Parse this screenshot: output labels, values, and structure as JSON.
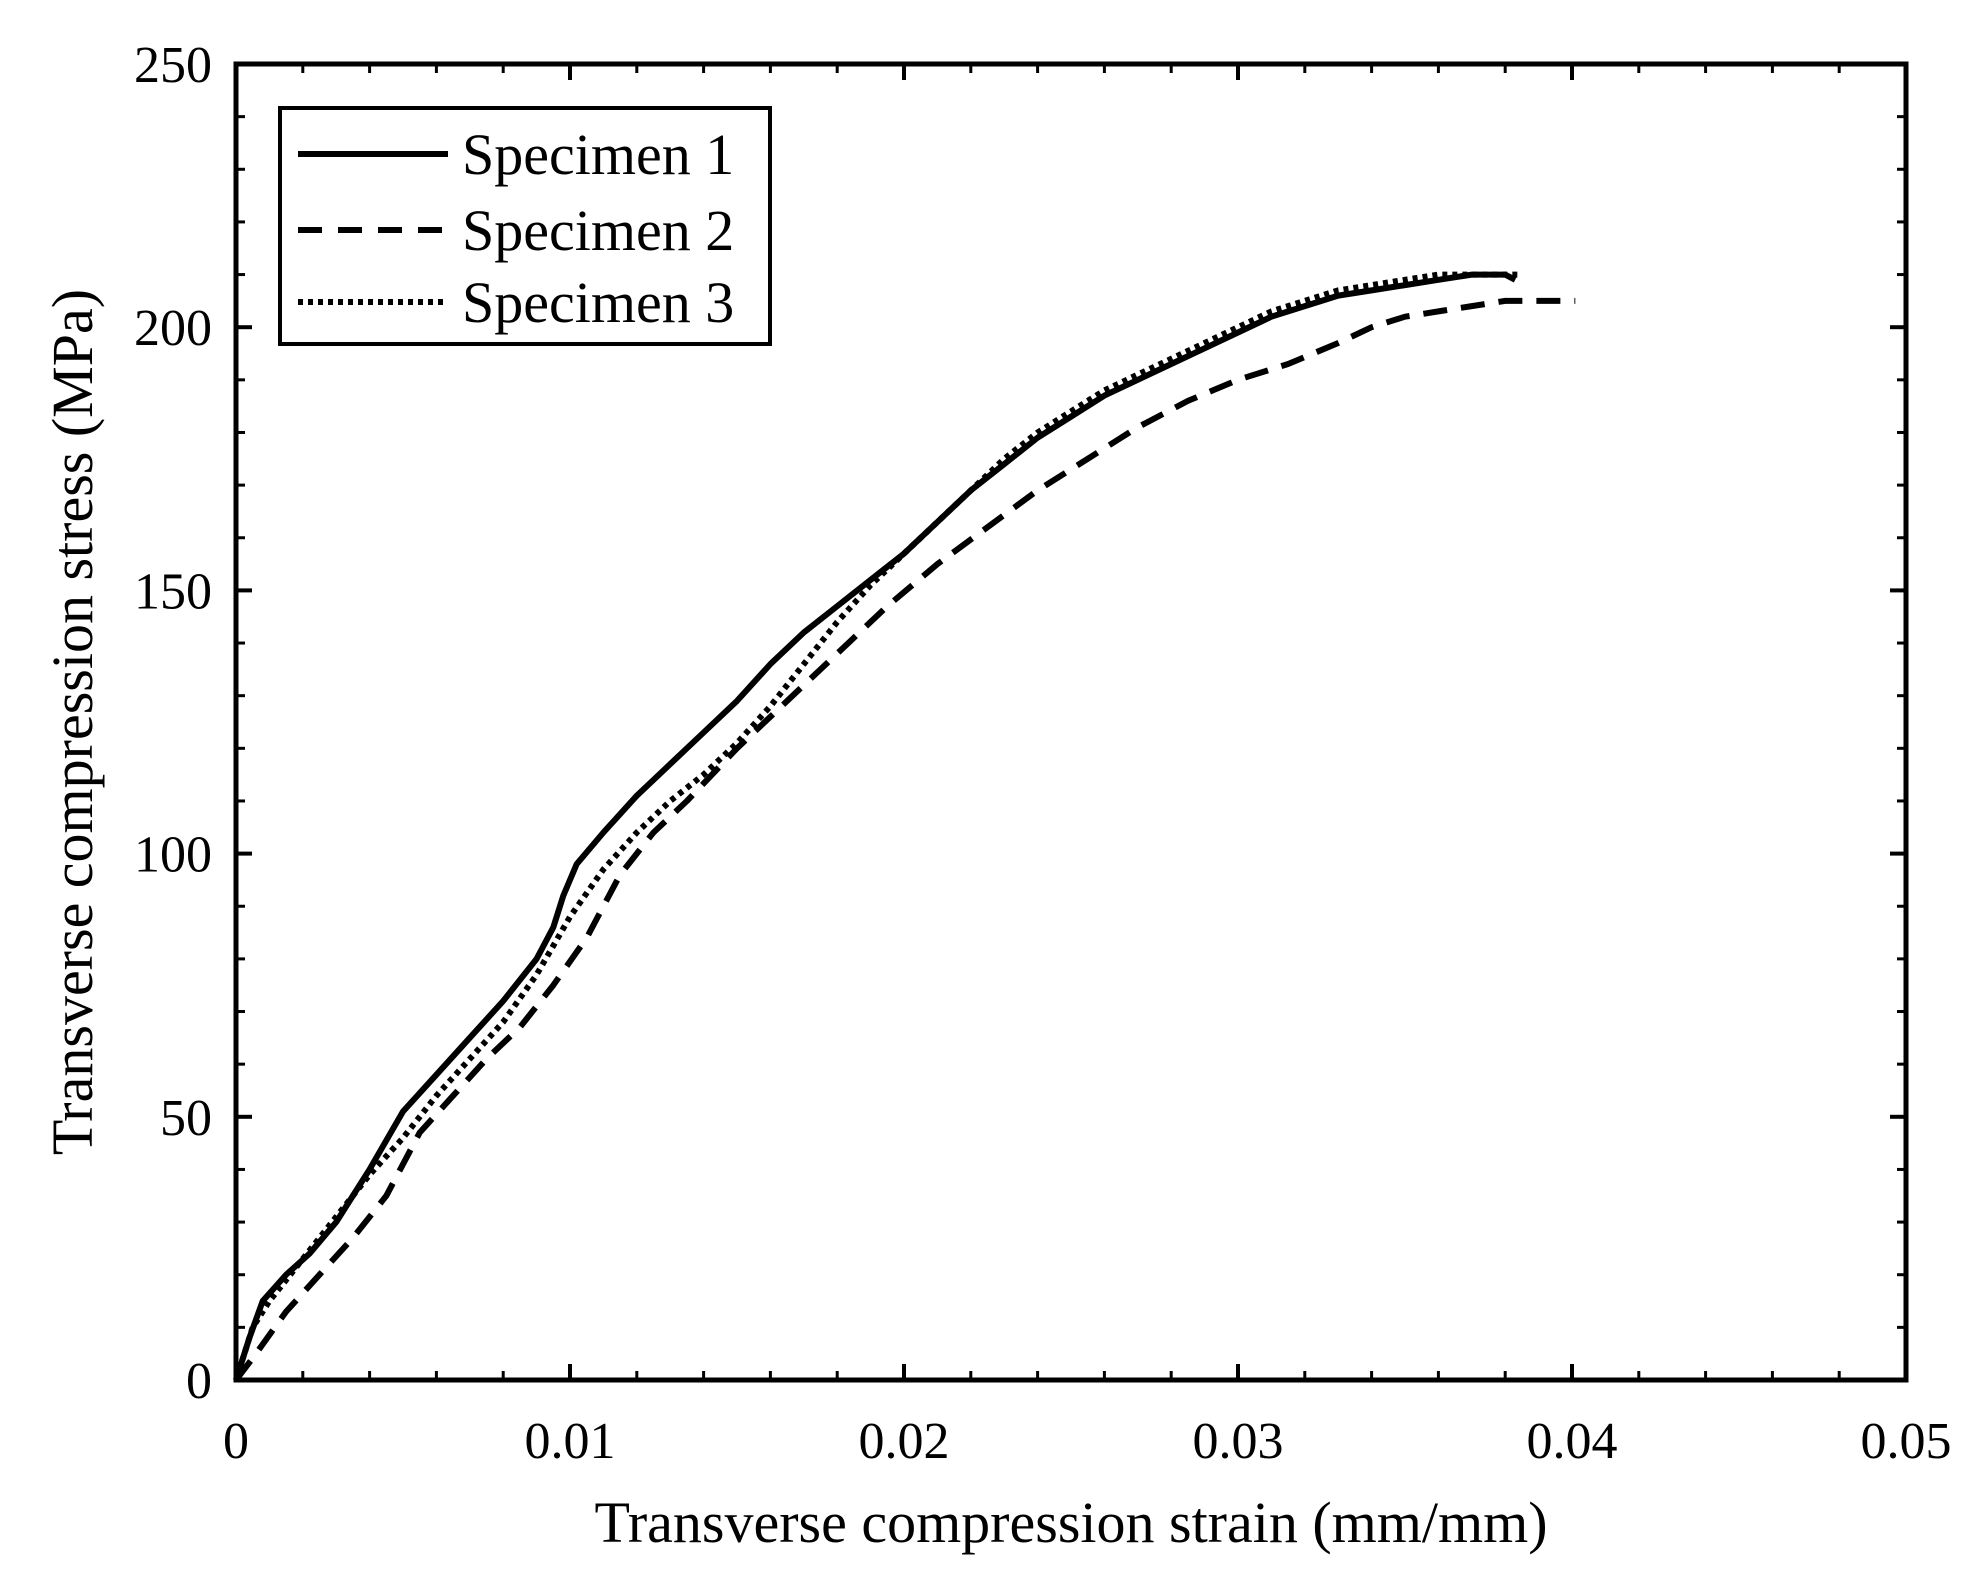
{
  "chart_data": {
    "type": "line",
    "title": "",
    "xlabel": "Transverse compression strain (mm/mm)",
    "ylabel": "Transverse compression stress (MPa)",
    "xlim": [
      0,
      0.05
    ],
    "ylim": [
      0,
      250
    ],
    "x_ticks": [
      0,
      0.01,
      0.02,
      0.03,
      0.04,
      0.05
    ],
    "x_tick_labels": [
      "0",
      "0.01",
      "0.02",
      "0.03",
      "0.04",
      "0.05"
    ],
    "y_ticks": [
      0,
      50,
      100,
      150,
      200,
      250
    ],
    "y_tick_labels": [
      "0",
      "50",
      "100",
      "150",
      "200",
      "250"
    ],
    "grid": false,
    "legend_position": "top-left",
    "colors": {
      "line": "#000000",
      "background": "#ffffff"
    },
    "series": [
      {
        "name": "Specimen 1",
        "style": "solid",
        "points": [
          [
            0,
            0
          ],
          [
            0.0004,
            8
          ],
          [
            0.0008,
            15
          ],
          [
            0.0015,
            20
          ],
          [
            0.0022,
            24
          ],
          [
            0.003,
            30
          ],
          [
            0.004,
            40
          ],
          [
            0.005,
            51
          ],
          [
            0.006,
            58
          ],
          [
            0.007,
            65
          ],
          [
            0.008,
            72
          ],
          [
            0.009,
            80
          ],
          [
            0.0095,
            86
          ],
          [
            0.0098,
            92
          ],
          [
            0.0102,
            98
          ],
          [
            0.011,
            104
          ],
          [
            0.012,
            111
          ],
          [
            0.013,
            117
          ],
          [
            0.014,
            123
          ],
          [
            0.015,
            129
          ],
          [
            0.016,
            136
          ],
          [
            0.017,
            142
          ],
          [
            0.018,
            147
          ],
          [
            0.019,
            152
          ],
          [
            0.02,
            157
          ],
          [
            0.021,
            163
          ],
          [
            0.022,
            169
          ],
          [
            0.023,
            174
          ],
          [
            0.024,
            179
          ],
          [
            0.025,
            183
          ],
          [
            0.026,
            187
          ],
          [
            0.027,
            190
          ],
          [
            0.028,
            193
          ],
          [
            0.029,
            196
          ],
          [
            0.03,
            199
          ],
          [
            0.031,
            202
          ],
          [
            0.032,
            204
          ],
          [
            0.033,
            206
          ],
          [
            0.034,
            207
          ],
          [
            0.035,
            208
          ],
          [
            0.036,
            209
          ],
          [
            0.037,
            210
          ],
          [
            0.038,
            210
          ],
          [
            0.0383,
            209
          ]
        ]
      },
      {
        "name": "Specimen 2",
        "style": "dashed",
        "points": [
          [
            0,
            0
          ],
          [
            0.0006,
            5
          ],
          [
            0.0015,
            13
          ],
          [
            0.0025,
            20
          ],
          [
            0.0035,
            27
          ],
          [
            0.0045,
            35
          ],
          [
            0.0055,
            47
          ],
          [
            0.0065,
            54
          ],
          [
            0.0075,
            61
          ],
          [
            0.0085,
            67
          ],
          [
            0.0095,
            75
          ],
          [
            0.0105,
            84
          ],
          [
            0.0115,
            96
          ],
          [
            0.0125,
            104
          ],
          [
            0.0135,
            110
          ],
          [
            0.015,
            120
          ],
          [
            0.0165,
            129
          ],
          [
            0.018,
            138
          ],
          [
            0.0195,
            147
          ],
          [
            0.021,
            155
          ],
          [
            0.0225,
            162
          ],
          [
            0.024,
            169
          ],
          [
            0.0255,
            175
          ],
          [
            0.027,
            181
          ],
          [
            0.0285,
            186
          ],
          [
            0.03,
            190
          ],
          [
            0.0315,
            193
          ],
          [
            0.033,
            197
          ],
          [
            0.034,
            200
          ],
          [
            0.035,
            202
          ],
          [
            0.036,
            203
          ],
          [
            0.037,
            204
          ],
          [
            0.038,
            205
          ],
          [
            0.039,
            205
          ],
          [
            0.0401,
            205
          ]
        ]
      },
      {
        "name": "Specimen 3",
        "style": "dotted",
        "points": [
          [
            0,
            0
          ],
          [
            0.0005,
            10
          ],
          [
            0.001,
            15
          ],
          [
            0.002,
            23
          ],
          [
            0.003,
            31
          ],
          [
            0.004,
            39
          ],
          [
            0.005,
            46
          ],
          [
            0.006,
            54
          ],
          [
            0.007,
            61
          ],
          [
            0.008,
            68
          ],
          [
            0.009,
            77
          ],
          [
            0.01,
            88
          ],
          [
            0.011,
            97
          ],
          [
            0.012,
            104
          ],
          [
            0.013,
            110
          ],
          [
            0.014,
            115
          ],
          [
            0.015,
            121
          ],
          [
            0.016,
            128
          ],
          [
            0.017,
            136
          ],
          [
            0.018,
            144
          ],
          [
            0.019,
            151
          ],
          [
            0.02,
            157
          ],
          [
            0.021,
            163
          ],
          [
            0.022,
            169
          ],
          [
            0.023,
            175
          ],
          [
            0.024,
            180
          ],
          [
            0.025,
            184
          ],
          [
            0.026,
            188
          ],
          [
            0.027,
            191
          ],
          [
            0.028,
            194
          ],
          [
            0.029,
            197
          ],
          [
            0.03,
            200
          ],
          [
            0.031,
            203
          ],
          [
            0.032,
            205
          ],
          [
            0.033,
            207
          ],
          [
            0.034,
            208
          ],
          [
            0.035,
            209
          ],
          [
            0.036,
            210
          ],
          [
            0.037,
            210
          ],
          [
            0.038,
            210
          ],
          [
            0.0385,
            210
          ]
        ]
      }
    ]
  }
}
